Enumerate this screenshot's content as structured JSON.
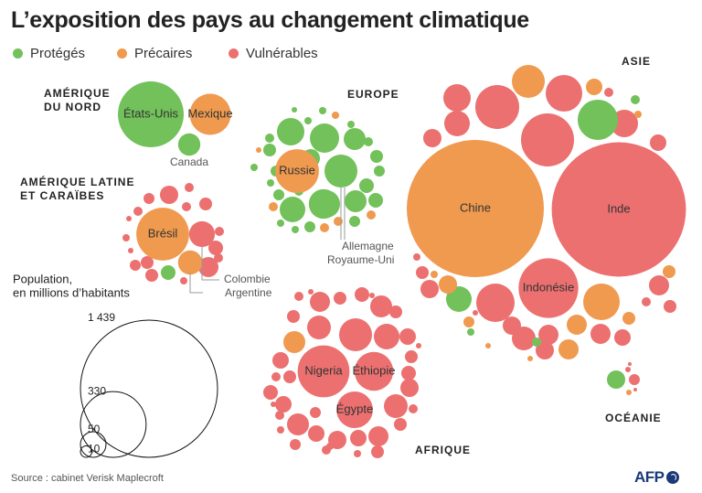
{
  "title": "L’exposition des pays au changement climatique",
  "legend": [
    {
      "label": "Protégés",
      "color": "#72c15a"
    },
    {
      "label": "Précaires",
      "color": "#ef9a4f"
    },
    {
      "label": "Vulnérables",
      "color": "#ec7070"
    }
  ],
  "source": "Source : cabinet Verisk Maplecroft",
  "logo": "AFP",
  "chart_data": {
    "type": "bubble",
    "size_measure": "Population, en millions d’habitants",
    "size_legend": {
      "label": "Population,\nen millions d’habitants",
      "values": [
        1439,
        330,
        50,
        10
      ],
      "tick_labels": [
        "1 439",
        "330",
        "50",
        "10"
      ]
    },
    "categories": [
      "Protégés",
      "Précaires",
      "Vulnérables"
    ],
    "regions": [
      {
        "name": "AMÉRIQUE\nDU NORD",
        "labeled_countries": [
          {
            "name": "États-Unis",
            "population": 331,
            "category": "Protégés"
          },
          {
            "name": "Mexique",
            "population": 129,
            "category": "Précaires"
          },
          {
            "name": "Canada",
            "population": 38,
            "category": "Protégés"
          }
        ]
      },
      {
        "name": "AMÉRIQUE LATINE\nET CARAÏBES",
        "labeled_countries": [
          {
            "name": "Brésil",
            "population": 213,
            "category": "Précaires"
          },
          {
            "name": "Colombie",
            "population": 51,
            "category": "Vulnérables"
          },
          {
            "name": "Argentine",
            "population": 45,
            "category": "Précaires"
          }
        ]
      },
      {
        "name": "EUROPE",
        "labeled_countries": [
          {
            "name": "Russie",
            "population": 146,
            "category": "Précaires"
          },
          {
            "name": "Allemagne",
            "population": 83,
            "category": "Protégés"
          },
          {
            "name": "Royaume-Uni",
            "population": 67,
            "category": "Protégés"
          }
        ]
      },
      {
        "name": "ASIE",
        "labeled_countries": [
          {
            "name": "Chine",
            "population": 1439,
            "category": "Précaires"
          },
          {
            "name": "Inde",
            "population": 1380,
            "category": "Vulnérables"
          },
          {
            "name": "Indonésie",
            "population": 273,
            "category": "Vulnérables"
          }
        ]
      },
      {
        "name": "AFRIQUE",
        "labeled_countries": [
          {
            "name": "Nigeria",
            "population": 206,
            "category": "Vulnérables"
          },
          {
            "name": "Éthiopie",
            "population": 115,
            "category": "Vulnérables"
          },
          {
            "name": "Égypte",
            "population": 102,
            "category": "Vulnérables"
          }
        ]
      },
      {
        "name": "OCÉANIE",
        "labeled_countries": []
      }
    ]
  }
}
